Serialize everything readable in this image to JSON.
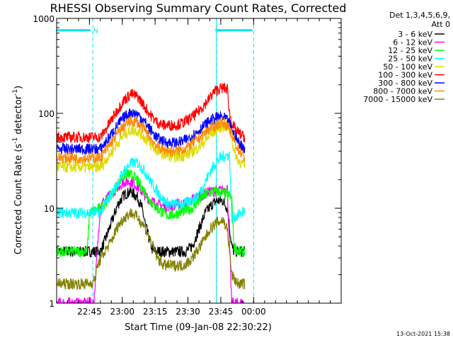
{
  "chart_data": {
    "type": "line",
    "title": "RHESSI Observing Summary Count Rates, Corrected",
    "xlabel": "Start Time (09-Jan-08 22:30:22)",
    "ylabel": "Corrected Count Rate (s",
    "ylabel_sup1": "-1",
    "ylabel_mid": " detector",
    "ylabel_sup2": "-1",
    "ylabel_end": ")",
    "ylog": true,
    "ylim": [
      1,
      1000
    ],
    "yticks": [
      {
        "value": 1,
        "label": "1"
      },
      {
        "value": 10,
        "label": "10"
      },
      {
        "value": 100,
        "label": "100"
      },
      {
        "value": 1000,
        "label": "1000"
      }
    ],
    "xlim_min": [
      0,
      130
    ],
    "xticks": [
      {
        "value": 15,
        "label": "22:45"
      },
      {
        "value": 30,
        "label": "23:00"
      },
      {
        "value": 45,
        "label": "23:15"
      },
      {
        "value": 60,
        "label": "23:30"
      },
      {
        "value": 75,
        "label": "23:45"
      },
      {
        "value": 90,
        "label": "00:00"
      }
    ],
    "legend_header": [
      "Det 1,3,4,5,6,9,",
      "Att 0"
    ],
    "legend_position": "right",
    "series": [
      {
        "name": "3 - 6 keV",
        "color": "#000000",
        "x": [
          0,
          20,
          22,
          25,
          28,
          31,
          34,
          37,
          39,
          41,
          44,
          47,
          50,
          53,
          56,
          59,
          62,
          65,
          68,
          71,
          73,
          76,
          78,
          80,
          81,
          83,
          86
        ],
        "y": [
          3.5,
          3.5,
          4.5,
          7,
          11,
          14,
          15,
          13,
          10,
          6,
          3.5,
          3.5,
          3.5,
          3.5,
          3.5,
          3.5,
          4,
          6,
          9,
          11,
          12,
          12,
          10,
          4,
          3.5,
          3.5,
          3.5
        ]
      },
      {
        "name": "6 - 12 keV",
        "color": "#ff00ff",
        "x": [
          0,
          15,
          17,
          20,
          22,
          25,
          28,
          31,
          34,
          37,
          40,
          43,
          46,
          49,
          52,
          55,
          58,
          61,
          64,
          67,
          70,
          73,
          76,
          78,
          80,
          82,
          86
        ],
        "y": [
          1,
          1,
          1,
          11,
          12,
          14,
          17,
          19,
          19,
          17,
          14,
          12,
          11,
          10.5,
          10.5,
          11,
          11,
          12,
          13,
          14,
          15,
          15,
          15.5,
          16,
          1,
          1,
          1
        ]
      },
      {
        "name": "12 - 25 keV",
        "color": "#00ff00",
        "x": [
          0,
          14,
          15,
          20,
          23,
          26,
          29,
          32,
          35,
          38,
          41,
          44,
          47,
          50,
          53,
          56,
          59,
          62,
          65,
          68,
          71,
          73,
          76,
          78,
          80,
          81,
          83,
          86
        ],
        "y": [
          3.5,
          3.5,
          9,
          10,
          12,
          15,
          20,
          23,
          22,
          18,
          14,
          11,
          9.5,
          8.5,
          8.5,
          9,
          9.5,
          10,
          12,
          14,
          15,
          15,
          14.5,
          14,
          13,
          4,
          3.5,
          3.5
        ]
      },
      {
        "name": "25 - 50 keV",
        "color": "#00ffff",
        "x": [
          0,
          20,
          22,
          25,
          28,
          31,
          34,
          37,
          40,
          43,
          46,
          49,
          52,
          55,
          58,
          61,
          64,
          67,
          70,
          73,
          75,
          77,
          79,
          80,
          81,
          83,
          86
        ],
        "y": [
          9,
          9,
          11,
          14,
          19,
          25,
          30,
          30,
          25,
          19,
          15,
          12,
          11,
          11,
          11,
          12,
          13,
          17,
          24,
          31,
          34,
          36,
          36,
          8,
          8,
          8.5,
          9.5
        ]
      },
      {
        "name": "50 - 100 keV",
        "color": "#dddd00",
        "x": [
          0,
          20,
          22,
          25,
          28,
          31,
          34,
          37,
          40,
          43,
          46,
          49,
          52,
          55,
          58,
          61,
          64,
          67,
          70,
          73,
          75,
          77,
          79,
          80,
          81,
          83,
          86
        ],
        "y": [
          27,
          27,
          31,
          39,
          49,
          60,
          67,
          65,
          56,
          46,
          40,
          37,
          35,
          35,
          36,
          38,
          42,
          49,
          58,
          68,
          72,
          73,
          70,
          55,
          40,
          32,
          28
        ]
      },
      {
        "name": "100 - 300 keV",
        "color": "#ff0000",
        "x": [
          0,
          20,
          22,
          25,
          28,
          31,
          34,
          37,
          40,
          43,
          46,
          49,
          52,
          55,
          58,
          61,
          64,
          67,
          70,
          72,
          74,
          76,
          78,
          79,
          80,
          81,
          83,
          86
        ],
        "y": [
          56,
          56,
          65,
          85,
          110,
          140,
          160,
          150,
          120,
          95,
          80,
          75,
          75,
          76,
          80,
          88,
          100,
          120,
          145,
          170,
          180,
          185,
          180,
          100,
          80,
          70,
          62,
          56
        ]
      },
      {
        "name": "300 - 800 keV",
        "color": "#0000ff",
        "x": [
          0,
          20,
          22,
          25,
          28,
          31,
          34,
          37,
          40,
          43,
          46,
          49,
          52,
          55,
          58,
          61,
          64,
          67,
          70,
          73,
          75,
          77,
          79,
          81,
          83,
          86
        ],
        "y": [
          42,
          42,
          48,
          60,
          76,
          92,
          102,
          98,
          83,
          66,
          55,
          50,
          49,
          49,
          51,
          56,
          63,
          73,
          83,
          90,
          92,
          88,
          78,
          60,
          50,
          42
        ]
      },
      {
        "name": "800 - 7000 keV",
        "color": "#ff8800",
        "x": [
          0,
          20,
          22,
          25,
          28,
          31,
          34,
          37,
          40,
          43,
          46,
          49,
          52,
          55,
          58,
          61,
          64,
          67,
          70,
          73,
          75,
          77,
          79,
          81,
          83,
          86
        ],
        "y": [
          34,
          34,
          39,
          49,
          62,
          75,
          83,
          80,
          68,
          54,
          45,
          41,
          40,
          40,
          42,
          46,
          52,
          60,
          69,
          76,
          80,
          78,
          68,
          52,
          42,
          34
        ]
      },
      {
        "name": "7000 - 15000 keV",
        "color": "#808000",
        "x": [
          0,
          15,
          17,
          19,
          22,
          25,
          28,
          31,
          34,
          37,
          40,
          43,
          46,
          49,
          52,
          55,
          58,
          61,
          64,
          67,
          70,
          73,
          76,
          78,
          80,
          81,
          83,
          86
        ],
        "y": [
          1.6,
          1.6,
          1.7,
          2.6,
          3.5,
          4.5,
          6.5,
          8,
          9,
          8,
          6.5,
          4.5,
          3,
          2.5,
          2.5,
          2.5,
          2.5,
          2.8,
          3.5,
          4.5,
          6,
          7,
          7.5,
          6,
          2,
          1.8,
          1.6,
          1.6
        ]
      }
    ],
    "annotations": {
      "n_label": "N",
      "segments": [
        {
          "type": "night_bar",
          "x_start": 0,
          "x_end": 15.5,
          "y": 750
        },
        {
          "type": "night_bar",
          "x_start": 72.5,
          "x_end": 89.5,
          "y": 750
        }
      ],
      "dashed_lines_x": [
        16.5,
        73,
        90
      ],
      "solid_lines_x": [
        73
      ]
    },
    "footer_date": "13-Oct-2021 15:38"
  }
}
